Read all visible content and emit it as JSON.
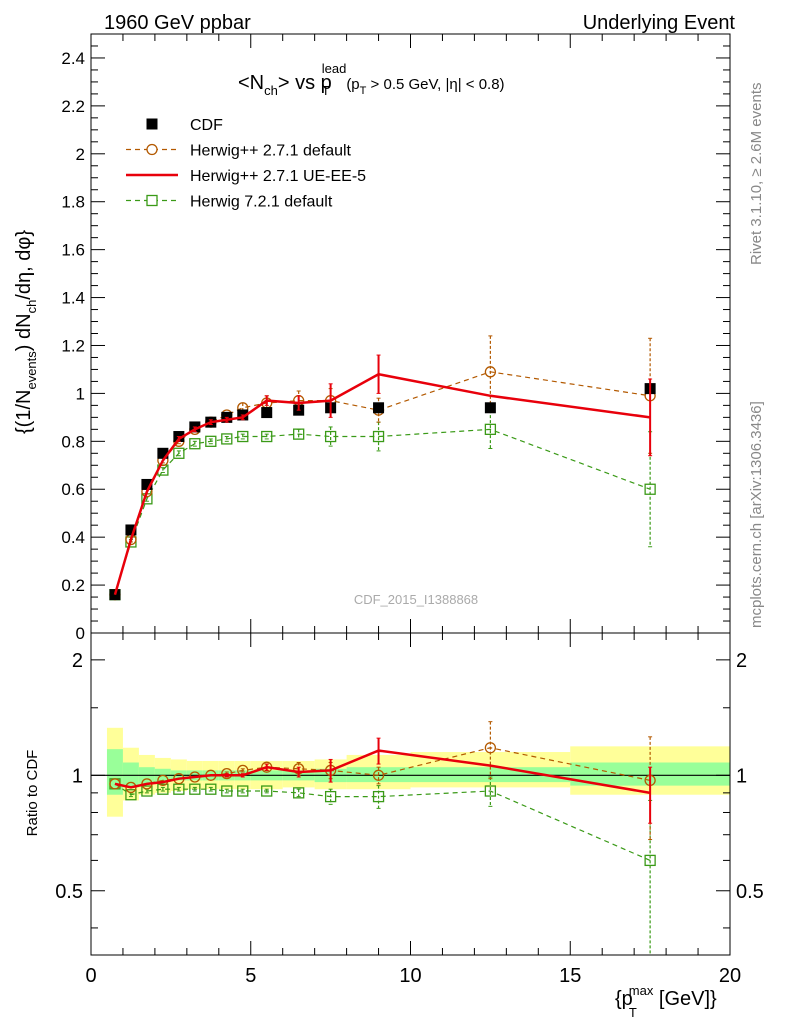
{
  "header": {
    "left": "1960 GeV ppbar",
    "right": "Underlying Event"
  },
  "side_labels": {
    "rivet": "Rivet 3.1.10, ≥ 2.6M events",
    "mcplots": "mcplots.cern.ch [arXiv:1306.3436]"
  },
  "watermark": "CDF_2015_I1388868",
  "plot_title": {
    "main": "<N",
    "main_sub": "ch",
    "vs": "> vs p",
    "vs_sub": "T",
    "vs_sup": "lead",
    "cut_p": "(p",
    "cut_sub": "T",
    "cut_rest": " > 0.5 GeV, |η| < 0.8)"
  },
  "y_axis_label": "{(1/N_events) dN_ch/dη, dφ}",
  "y_label_parts": {
    "a": "{(1/N",
    "a_sub": "events",
    "b": ") dN",
    "b_sub": "ch",
    "c": "/dη, dφ}"
  },
  "ratio_y_label": "Ratio to CDF",
  "x_axis_label": "{p_T^max [GeV]}",
  "x_label_parts": {
    "a": "{p",
    "a_sub": "T",
    "a_sup": "max",
    "b": " [GeV]}"
  },
  "chart_data": [
    {
      "type": "line",
      "panel": "main",
      "xlim": [
        0,
        20
      ],
      "ylim": [
        0,
        2.5
      ],
      "x_ticks": [
        "0",
        "5",
        "10",
        "15",
        "20"
      ],
      "y_ticks": [
        "0",
        "0.2",
        "0.4",
        "0.6",
        "0.8",
        "1",
        "1.2",
        "1.4",
        "1.6",
        "1.8",
        "2",
        "2.2",
        "2.4"
      ],
      "legend_position": "top-left",
      "series": [
        {
          "name": "CDF",
          "color": "#000000",
          "marker": "filled-square",
          "x": [
            0.75,
            1.25,
            1.75,
            2.25,
            2.75,
            3.25,
            3.75,
            4.25,
            4.75,
            5.5,
            6.5,
            7.5,
            9.0,
            12.5,
            17.5
          ],
          "y": [
            0.16,
            0.43,
            0.62,
            0.75,
            0.82,
            0.86,
            0.88,
            0.9,
            0.91,
            0.92,
            0.93,
            0.94,
            0.94,
            0.94,
            1.02
          ],
          "err": [
            0.0,
            0.0,
            0.0,
            0.0,
            0.0,
            0.0,
            0.0,
            0.0,
            0.0,
            0.0,
            0.0,
            0.0,
            0.0,
            0.0,
            0.0
          ]
        },
        {
          "name": "Herwig++ 2.7.1 default",
          "color": "#b35900",
          "marker": "open-circle",
          "dash": "5,4",
          "x": [
            0.75,
            1.25,
            1.75,
            2.25,
            2.75,
            3.25,
            3.75,
            4.25,
            4.75,
            5.5,
            6.5,
            7.5,
            9.0,
            12.5,
            17.5
          ],
          "y": [
            0.16,
            0.39,
            0.59,
            0.72,
            0.8,
            0.85,
            0.88,
            0.91,
            0.94,
            0.96,
            0.97,
            0.97,
            0.93,
            1.09,
            0.99
          ],
          "err": [
            0.01,
            0.01,
            0.01,
            0.01,
            0.01,
            0.01,
            0.01,
            0.01,
            0.02,
            0.03,
            0.04,
            0.05,
            0.05,
            0.15,
            0.24
          ]
        },
        {
          "name": "Herwig++ 2.7.1 UE-EE-5",
          "color": "#e8000b",
          "marker": "none",
          "x": [
            0.75,
            1.25,
            1.75,
            2.25,
            2.75,
            3.25,
            3.75,
            4.25,
            4.75,
            5.5,
            6.5,
            7.5,
            9.0,
            12.5,
            17.5
          ],
          "y": [
            0.16,
            0.39,
            0.59,
            0.72,
            0.81,
            0.85,
            0.88,
            0.89,
            0.9,
            0.97,
            0.96,
            0.97,
            1.08,
            0.99,
            0.9
          ],
          "err": [
            0.0,
            0.0,
            0.0,
            0.0,
            0.01,
            0.01,
            0.01,
            0.01,
            0.01,
            0.02,
            0.03,
            0.07,
            0.08,
            0.0,
            0.16
          ]
        },
        {
          "name": "Herwig 7.2.1 default",
          "color": "#3a9a17",
          "marker": "open-square",
          "dash": "5,4",
          "x": [
            0.75,
            1.25,
            1.75,
            2.25,
            2.75,
            3.25,
            3.75,
            4.25,
            4.75,
            5.5,
            6.5,
            7.5,
            9.0,
            12.5,
            17.5
          ],
          "y": [
            0.16,
            0.38,
            0.56,
            0.68,
            0.75,
            0.79,
            0.8,
            0.81,
            0.82,
            0.82,
            0.83,
            0.82,
            0.82,
            0.85,
            0.6
          ],
          "err": [
            0.0,
            0.01,
            0.01,
            0.01,
            0.01,
            0.01,
            0.01,
            0.01,
            0.01,
            0.01,
            0.02,
            0.04,
            0.06,
            0.08,
            0.24
          ]
        }
      ]
    },
    {
      "type": "line",
      "panel": "ratio",
      "xlim": [
        0,
        20
      ],
      "ylim": [
        0.34,
        2.35
      ],
      "y_scale": "log",
      "x_ticks": [
        "0",
        "5",
        "10",
        "15",
        "20"
      ],
      "y_ticks": [
        "0.5",
        "1",
        "2"
      ],
      "bands": {
        "edges": [
          0.5,
          1.0,
          1.5,
          2.0,
          2.5,
          3.0,
          3.5,
          4.0,
          4.5,
          5.0,
          6.0,
          7.0,
          8.0,
          10.0,
          15.0,
          20.0
        ],
        "yellow_lo": [
          0.78,
          0.86,
          0.89,
          0.9,
          0.91,
          0.92,
          0.92,
          0.92,
          0.92,
          0.92,
          0.93,
          0.92,
          0.92,
          0.93,
          0.89
        ],
        "yellow_hi": [
          1.33,
          1.18,
          1.13,
          1.11,
          1.1,
          1.09,
          1.09,
          1.09,
          1.09,
          1.09,
          1.09,
          1.1,
          1.13,
          1.15,
          1.19
        ],
        "green_lo": [
          0.89,
          0.93,
          0.95,
          0.96,
          0.97,
          0.97,
          0.97,
          0.97,
          0.97,
          0.97,
          0.97,
          0.96,
          0.96,
          0.96,
          0.94
        ],
        "green_hi": [
          1.17,
          1.08,
          1.05,
          1.04,
          1.03,
          1.03,
          1.03,
          1.03,
          1.03,
          1.03,
          1.03,
          1.04,
          1.05,
          1.05,
          1.08
        ],
        "yellow_color": "#ffff99",
        "green_color": "#99ff99"
      },
      "series": [
        {
          "name": "Herwig++ 2.7.1 default",
          "color": "#b35900",
          "marker": "open-circle",
          "dash": "5,4",
          "x": [
            0.75,
            1.25,
            1.75,
            2.25,
            2.75,
            3.25,
            3.75,
            4.25,
            4.75,
            5.5,
            6.5,
            7.5,
            9.0,
            12.5,
            17.5
          ],
          "y": [
            0.95,
            0.93,
            0.95,
            0.97,
            0.98,
            0.99,
            1.0,
            1.01,
            1.03,
            1.05,
            1.04,
            1.03,
            1.0,
            1.18,
            0.97
          ],
          "err": [
            0.0,
            0.0,
            0.0,
            0.0,
            0.0,
            0.0,
            0.0,
            0.01,
            0.01,
            0.02,
            0.04,
            0.05,
            0.05,
            0.2,
            0.29
          ]
        },
        {
          "name": "Herwig++ 2.7.1 UE-EE-5",
          "color": "#e8000b",
          "marker": "none",
          "x": [
            0.75,
            1.25,
            1.75,
            2.25,
            2.75,
            3.25,
            3.75,
            4.25,
            4.75,
            5.5,
            6.5,
            7.5,
            9.0,
            12.5,
            17.5
          ],
          "y": [
            0.95,
            0.93,
            0.95,
            0.96,
            0.98,
            0.99,
            1.0,
            1.0,
            1.0,
            1.05,
            1.02,
            1.03,
            1.16,
            1.06,
            0.9
          ],
          "err": [
            0.0,
            0.0,
            0.0,
            0.0,
            0.0,
            0.0,
            0.0,
            0.01,
            0.01,
            0.02,
            0.03,
            0.07,
            0.09,
            0.0,
            0.15
          ]
        },
        {
          "name": "Herwig 7.2.1 default",
          "color": "#3a9a17",
          "marker": "open-square",
          "dash": "5,4",
          "x": [
            0.75,
            1.25,
            1.75,
            2.25,
            2.75,
            3.25,
            3.75,
            4.25,
            4.75,
            5.5,
            6.5,
            7.5,
            9.0,
            12.5,
            17.5
          ],
          "y": [
            0.95,
            0.89,
            0.91,
            0.92,
            0.92,
            0.92,
            0.92,
            0.91,
            0.91,
            0.91,
            0.9,
            0.88,
            0.88,
            0.91,
            0.6
          ],
          "err": [
            0.0,
            0.01,
            0.01,
            0.01,
            0.01,
            0.01,
            0.01,
            0.01,
            0.01,
            0.01,
            0.02,
            0.04,
            0.06,
            0.08,
            0.26
          ]
        }
      ],
      "reference_line": 1
    }
  ]
}
